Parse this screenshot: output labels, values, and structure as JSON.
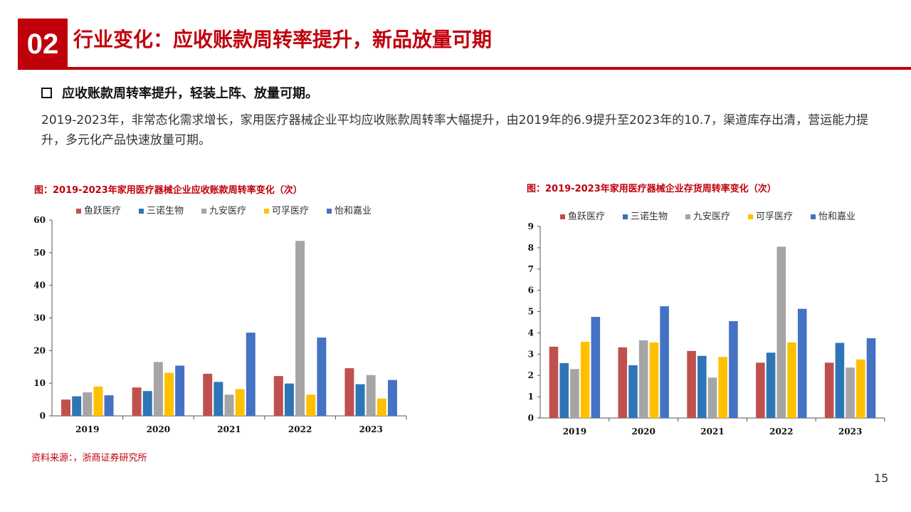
{
  "header": {
    "number": "02",
    "title": "行业变化：应收账款周转率提升，新品放量可期"
  },
  "bullet": {
    "title": "应收账款周转率提升，轻装上阵、放量可期。",
    "body": "2019-2023年，非常态化需求增长，家用医疗器械企业平均应收账款周转率大幅提升，由2019年的6.9提升至2023年的10.7，渠道库存出清，营运能力提升，多元化产品快速放量可期。"
  },
  "colors": {
    "accent": "#c0000b",
    "series": [
      "#c0504d",
      "#2e75b6",
      "#a5a5a5",
      "#ffc000",
      "#4472c4"
    ]
  },
  "chart_data": [
    {
      "type": "bar",
      "title": "图：2019-2023年家用医疗器械企业应收账款周转率变化（次）",
      "categories": [
        "2019",
        "2020",
        "2021",
        "2022",
        "2023"
      ],
      "ylim": [
        0,
        60
      ],
      "yticks": [
        0,
        10,
        20,
        30,
        40,
        50,
        60
      ],
      "legend_position": "top",
      "series": [
        {
          "name": "鱼跃医疗",
          "values": [
            5.0,
            8.7,
            12.9,
            12.2,
            14.6
          ]
        },
        {
          "name": "三诺生物",
          "values": [
            6.0,
            7.6,
            10.4,
            9.9,
            9.7
          ]
        },
        {
          "name": "九安医疗",
          "values": [
            7.2,
            16.5,
            6.5,
            53.6,
            12.5
          ]
        },
        {
          "name": "可孚医疗",
          "values": [
            9.0,
            13.2,
            8.2,
            6.5,
            5.3
          ]
        },
        {
          "name": "怡和嘉业",
          "values": [
            6.3,
            15.4,
            25.5,
            24.0,
            11.0
          ]
        }
      ]
    },
    {
      "type": "bar",
      "title": "图：2019-2023年家用医疗器械企业存货周转率变化（次）",
      "categories": [
        "2019",
        "2020",
        "2021",
        "2022",
        "2023"
      ],
      "ylim": [
        0,
        9
      ],
      "yticks": [
        0,
        1,
        2,
        3,
        4,
        5,
        6,
        7,
        8,
        9
      ],
      "legend_position": "top",
      "series": [
        {
          "name": "鱼跃医疗",
          "values": [
            3.35,
            3.32,
            3.15,
            2.6,
            2.6
          ]
        },
        {
          "name": "三诺生物",
          "values": [
            2.58,
            2.48,
            2.92,
            3.07,
            3.53
          ]
        },
        {
          "name": "九安医疗",
          "values": [
            2.3,
            3.65,
            1.9,
            8.05,
            2.37
          ]
        },
        {
          "name": "可孚医疗",
          "values": [
            3.58,
            3.55,
            2.87,
            3.55,
            2.75
          ]
        },
        {
          "name": "怡和嘉业",
          "values": [
            4.75,
            5.25,
            4.55,
            5.13,
            3.75
          ]
        }
      ]
    }
  ],
  "source": "资料来源：，浙商证券研究所",
  "page_number": "15"
}
